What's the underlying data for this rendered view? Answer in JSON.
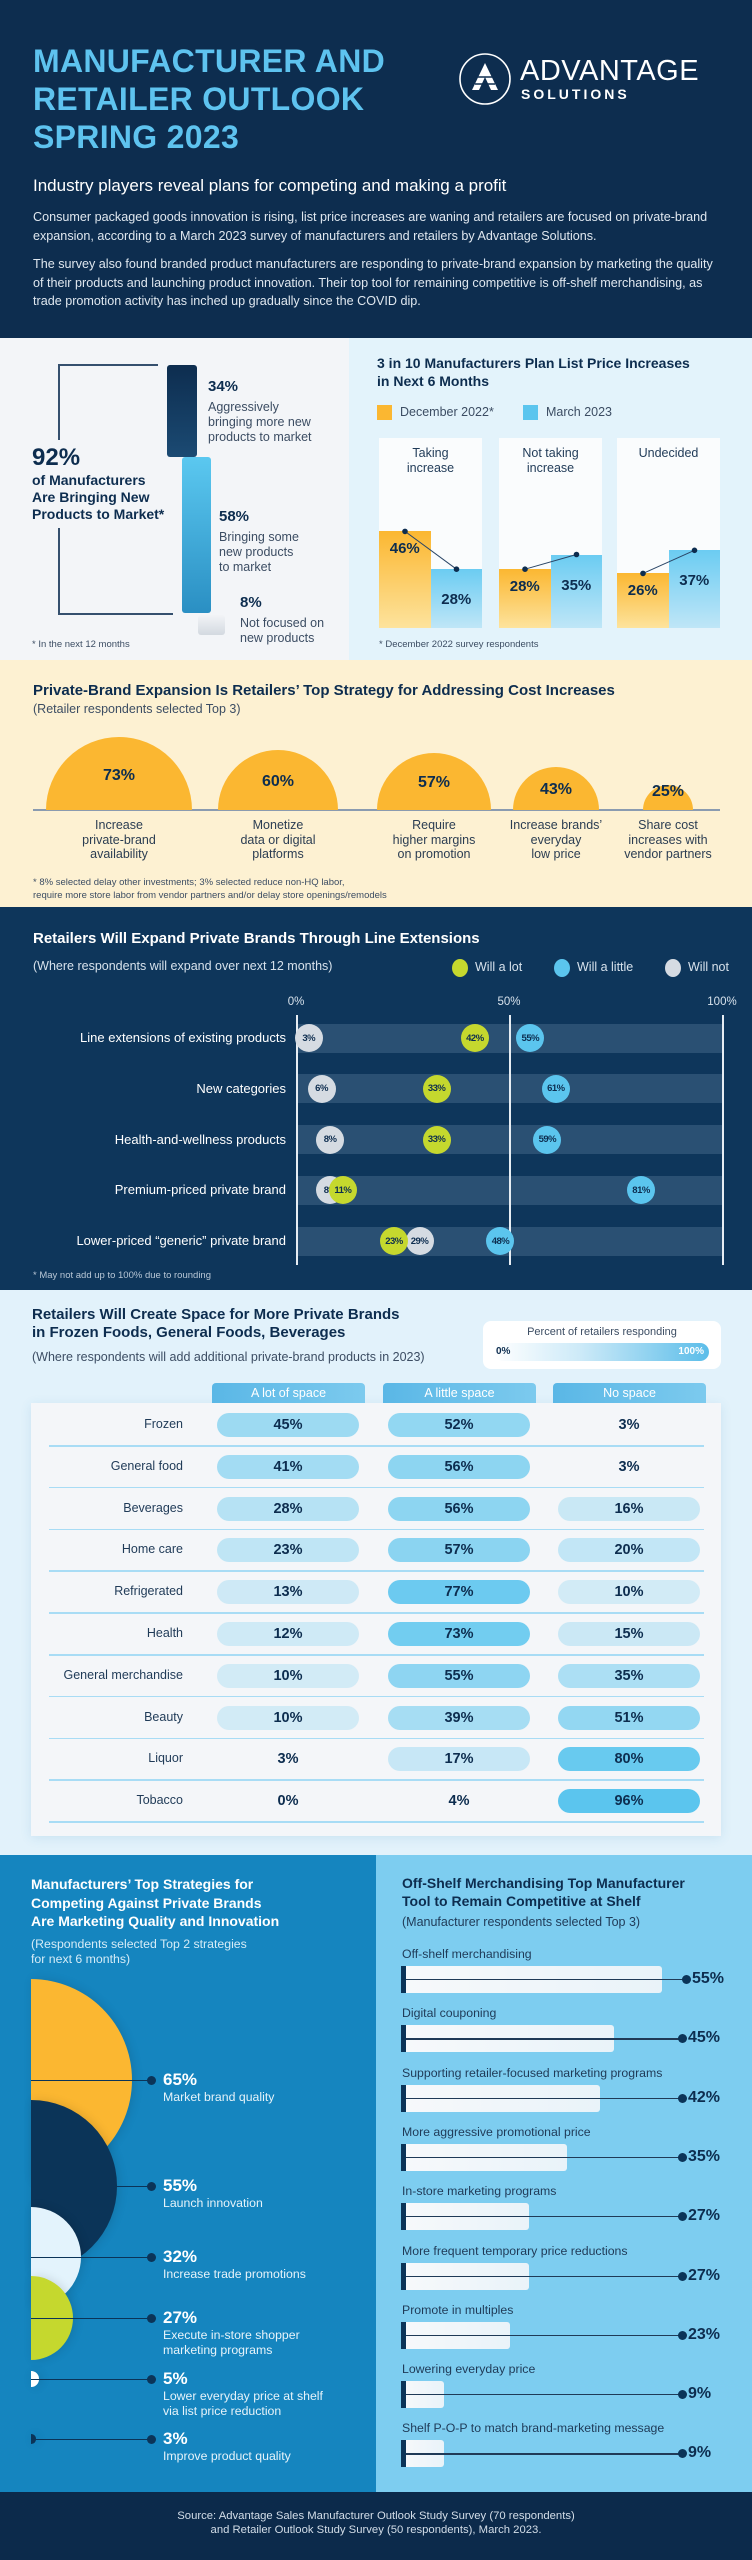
{
  "header": {
    "title": "MANUFACTURER AND\nRETAILER OUTLOOK\nSPRING 2023",
    "logo": {
      "name": "ADVANTAGE",
      "sub": "SOLUTIONS",
      "icon": "triangle-mountain-logo"
    },
    "subtitle": "Industry players reveal plans for competing and making a profit",
    "paragraphs": [
      "Consumer packaged goods innovation is rising, list price increases are waning and retailers are focused on private-brand expansion, according to a March 2023 survey of manufacturers and retailers by Advantage Solutions.",
      "The survey also found branded product manufacturers are responding to private-brand expansion by marketing the quality of their products and launching product innovation. Their top tool for remaining competitive is off-shelf merchandising, as trade promotion activity has inched up gradually since the COVID dip."
    ]
  },
  "colors": {
    "navy": "#0d2d4f",
    "title_blue": "#5ec3ef",
    "yellow": "#fbb731",
    "light_blue": "#5bc5ee",
    "green": "#c5d82e",
    "gray": "#d5dbe2",
    "cream": "#fdf1d2"
  },
  "chart_data": [
    {
      "type": "bar",
      "total": "92%",
      "total_label": "of Manufacturers\nAre Bringing New\nProducts to Market*",
      "items": [
        {
          "value": 34,
          "value_label": "34%",
          "label": "Aggressively\nbringing more new\nproducts to market"
        },
        {
          "value": 58,
          "value_label": "58%",
          "label": "Bringing some\nnew products\nto market"
        },
        {
          "value": 8,
          "value_label": "8%",
          "label": "Not focused on\nnew products"
        }
      ],
      "footnote": "* In the next 12 months"
    },
    {
      "type": "bar",
      "title": "3 in 10 Manufacturers Plan List Price Increases\nin Next 6 Months",
      "categories": [
        "Taking\nincrease",
        "Not taking\nincrease",
        "Undecided"
      ],
      "series": [
        {
          "name": "December 2022*",
          "values": [
            46,
            28,
            26
          ],
          "labels": [
            "46%",
            "28%",
            "26%"
          ]
        },
        {
          "name": "March 2023",
          "values": [
            28,
            35,
            37
          ],
          "labels": [
            "28%",
            "35%",
            "37%"
          ]
        }
      ],
      "footnote": "* December 2022 survey respondents"
    },
    {
      "type": "bar",
      "title": "Private-Brand Expansion Is Retailers’ Top Strategy for Addressing Cost Increases",
      "subtitle": "(Retailer respondents selected Top 3)",
      "categories": [
        "Increase\nprivate-brand\navailability",
        "Monetize\ndata or digital\nplatforms",
        "Require\nhigher margins\non promotion",
        "Increase brands’\neveryday\nlow price",
        "Share cost\nincreases with\nvendor partners"
      ],
      "values": [
        73,
        60,
        57,
        43,
        25
      ],
      "labels": [
        "73%",
        "60%",
        "57%",
        "43%",
        "25%"
      ],
      "footnote": "* 8% selected delay other investments; 3% selected reduce non-HQ labor,\nrequire more store labor from vendor partners and/or delay store openings/remodels"
    },
    {
      "type": "scatter",
      "title": "Retailers Will Expand Private Brands Through Line Extensions",
      "subtitle": "(Where respondents will expand over next 12 months)",
      "xlim": [
        0,
        100
      ],
      "x_ticks": [
        "0%",
        "50%",
        "100%"
      ],
      "categories": [
        "Line extensions of existing products",
        "New categories",
        "Health-and-wellness products",
        "Premium-priced private brand",
        "Lower-priced “generic” private brand"
      ],
      "series": [
        {
          "name": "Will a lot",
          "color": "#c5d82e",
          "values": [
            42,
            33,
            33,
            11,
            23
          ]
        },
        {
          "name": "Will a little",
          "color": "#5bc5ee",
          "values": [
            55,
            61,
            59,
            81,
            48
          ]
        },
        {
          "name": "Will not",
          "color": "#d5dbe2",
          "values": [
            3,
            6,
            8,
            8,
            29
          ]
        }
      ],
      "footnote": "* May not add up to 100% due to rounding"
    },
    {
      "type": "table",
      "title": "Retailers Will Create Space for More Private Brands\nin Frozen Foods, General Foods, Beverages",
      "subtitle": "(Where respondents will add additional private-brand products in 2023)",
      "scale_legend": {
        "label": "Percent of retailers responding",
        "min": "0%",
        "max": "100%"
      },
      "columns": [
        "A lot of space",
        "A little space",
        "No space"
      ],
      "rows": [
        {
          "label": "Frozen",
          "values": [
            45,
            52,
            3
          ]
        },
        {
          "label": "General food",
          "values": [
            41,
            56,
            3
          ]
        },
        {
          "label": "Beverages",
          "values": [
            28,
            56,
            16
          ]
        },
        {
          "label": "Home care",
          "values": [
            23,
            57,
            20
          ]
        },
        {
          "label": "Refrigerated",
          "values": [
            13,
            77,
            10
          ]
        },
        {
          "label": "Health",
          "values": [
            12,
            73,
            15
          ]
        },
        {
          "label": "General merchandise",
          "values": [
            10,
            55,
            35
          ]
        },
        {
          "label": "Beauty",
          "values": [
            10,
            39,
            51
          ]
        },
        {
          "label": "Liquor",
          "values": [
            3,
            17,
            80
          ]
        },
        {
          "label": "Tobacco",
          "values": [
            0,
            4,
            96
          ]
        }
      ]
    },
    {
      "type": "bar",
      "title": "Manufacturers’ Top Strategies for\nCompeting Against Private Brands\nAre Marketing Quality and Innovation",
      "subtitle": "(Respondents selected Top 2 strategies\nfor next 6 months)",
      "items": [
        {
          "value": 65,
          "value_label": "65%",
          "label": "Market brand quality",
          "color": "#fbb731"
        },
        {
          "value": 55,
          "value_label": "55%",
          "label": "Launch innovation",
          "color": "#0b3458"
        },
        {
          "value": 32,
          "value_label": "32%",
          "label": "Increase trade promotions",
          "color": "#e3f3fc"
        },
        {
          "value": 27,
          "value_label": "27%",
          "label": "Execute in-store shopper\nmarketing programs",
          "color": "#c5d82e"
        },
        {
          "value": 5,
          "value_label": "5%",
          "label": "Lower everyday price at shelf\nvia list price reduction",
          "color": "#ffffff"
        },
        {
          "value": 3,
          "value_label": "3%",
          "label": "Improve product quality",
          "color": "#0b3458"
        }
      ]
    },
    {
      "type": "bar",
      "title": "Off-Shelf Merchandising Top Manufacturer\nTool to Remain Competitive at Shelf",
      "subtitle": "(Manufacturer respondents selected Top 3)",
      "items": [
        {
          "label": "Off-shelf merchandising",
          "value": 55,
          "value_label": "55%"
        },
        {
          "label": "Digital couponing",
          "value": 45,
          "value_label": "45%"
        },
        {
          "label": "Supporting retailer-focused marketing programs",
          "value": 42,
          "value_label": "42%"
        },
        {
          "label": "More aggressive promotional price",
          "value": 35,
          "value_label": "35%"
        },
        {
          "label": "In-store marketing programs",
          "value": 27,
          "value_label": "27%"
        },
        {
          "label": "More frequent temporary price reductions",
          "value": 27,
          "value_label": "27%"
        },
        {
          "label": "Promote in multiples",
          "value": 23,
          "value_label": "23%"
        },
        {
          "label": "Lowering everyday price",
          "value": 9,
          "value_label": "9%"
        },
        {
          "label": "Shelf P-O-P to match brand-marketing message",
          "value": 9,
          "value_label": "9%"
        }
      ]
    }
  ],
  "footer": {
    "source": "Source: Advantage Sales Manufacturer Outlook Study Survey (70 respondents)\nand Retailer Outlook Study Survey (50 respondents), March 2023."
  }
}
